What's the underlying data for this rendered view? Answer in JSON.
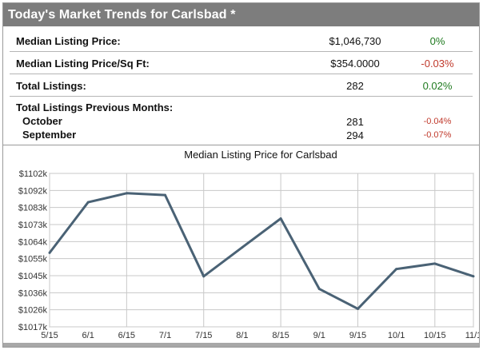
{
  "widget": {
    "title": "Today's Market Trends for Carlsbad *"
  },
  "stats": {
    "median_listing_price": {
      "label": "Median Listing Price:",
      "value": "$1,046,730",
      "change": "0%"
    },
    "median_price_sqft": {
      "label": "Median Listing Price/Sq Ft:",
      "value": "$354.0000",
      "change": "-0.03%"
    },
    "total_listings": {
      "label": "Total Listings:",
      "value": "282",
      "change": "0.02%"
    },
    "previous_months": {
      "label": "Total Listings Previous Months:",
      "months": [
        {
          "month": "October",
          "value": "281",
          "change": "-0.04%"
        },
        {
          "month": "September",
          "value": "294",
          "change": "-0.07%"
        }
      ]
    }
  },
  "colors": {
    "header_bg": "#7d7d7d",
    "positive": "#1f7a1f",
    "negative": "#c0392b",
    "line": "#4a6275",
    "grid": "#c8c8c8"
  },
  "chart_data": {
    "type": "line",
    "title": "Median Listing Price for Carlsbad",
    "xlabel": "",
    "ylabel": "",
    "categories": [
      "5/15",
      "6/1",
      "6/15",
      "7/1",
      "7/15",
      "8/1",
      "8/15",
      "9/1",
      "9/15",
      "10/1",
      "10/15",
      "11/1"
    ],
    "values": [
      1058,
      1086,
      1091,
      1090,
      1045,
      1061,
      1077,
      1038,
      1027,
      1049,
      1052,
      1045
    ],
    "y_ticks": [
      "$1102k",
      "$1092k",
      "$1083k",
      "$1073k",
      "$1064k",
      "$1055k",
      "$1045k",
      "$1036k",
      "$1026k",
      "$1017k"
    ],
    "ylim": [
      1017,
      1102
    ],
    "grid": true
  }
}
